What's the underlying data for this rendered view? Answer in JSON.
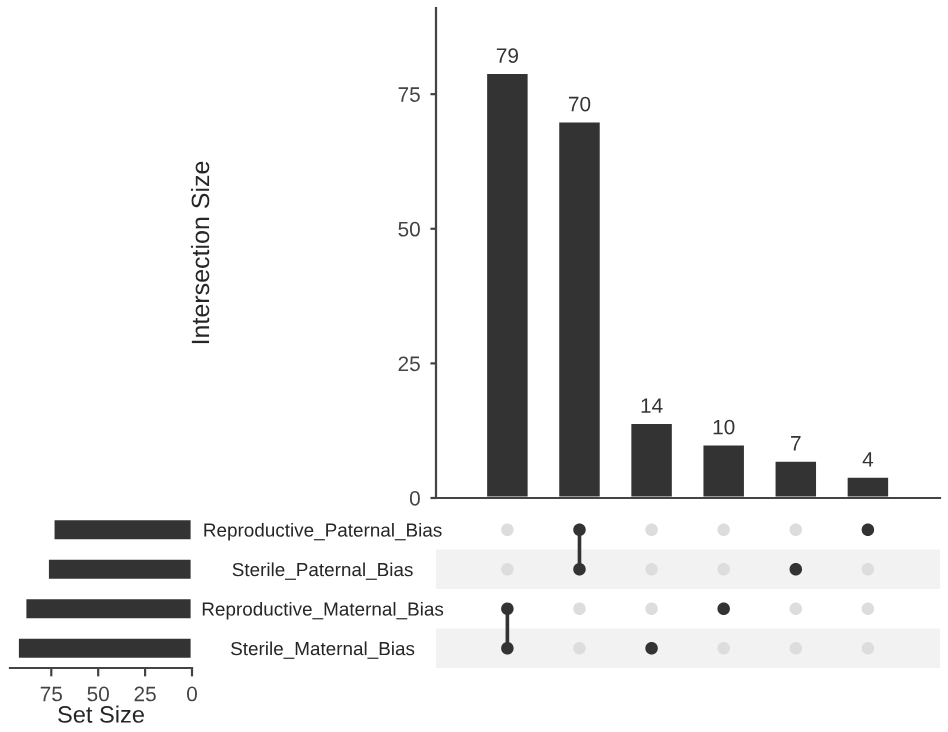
{
  "chart_data": [
    {
      "type": "bar",
      "categories": [
        null,
        null,
        null,
        null,
        null,
        null
      ],
      "values": [
        79,
        70,
        14,
        10,
        7,
        4
      ],
      "color": "#333333",
      "ylabel": "Intersection Size",
      "ylim": [
        0,
        91
      ],
      "yticks": [
        0,
        25,
        50,
        75
      ],
      "data_labels": true,
      "grid": false,
      "tick_labels": "y"
    },
    {
      "type": "bar",
      "orientation": "horizontal",
      "categories": [
        "Reproductive_Paternal_Bias",
        "Sterile_Paternal_Bias",
        "Reproductive_Maternal_Bias",
        "Sterile_Maternal_Bias"
      ],
      "values": [
        74,
        77,
        89,
        93
      ],
      "color": "#333333",
      "xlabel": "Set Size",
      "xlim": [
        97,
        0
      ],
      "xticks": [
        75,
        50,
        25,
        0
      ],
      "grid": false
    }
  ]
}
